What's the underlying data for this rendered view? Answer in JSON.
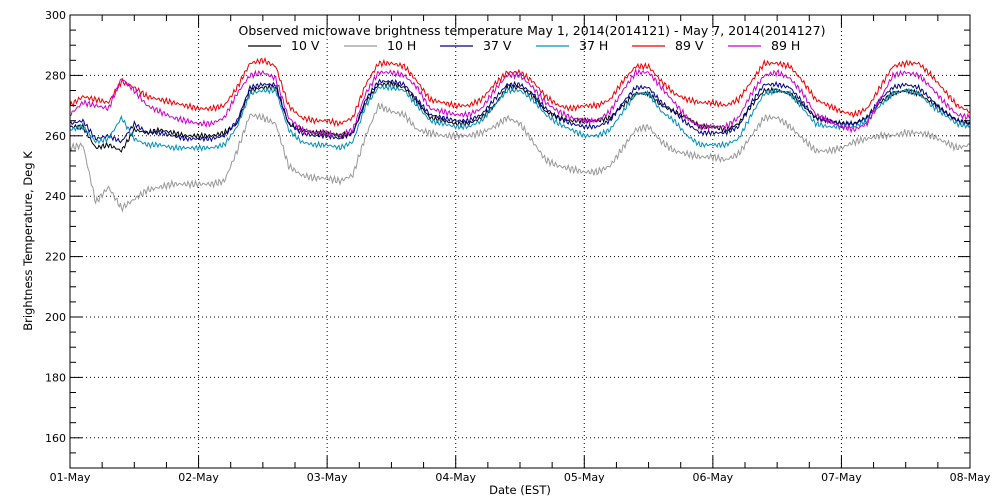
{
  "chart_data": {
    "type": "line",
    "title": "Observed microwave brightness temperature May  1, 2014(2014121) - May  7, 2014(2014127)",
    "xlabel": "Date (EST)",
    "ylabel": "Brightness Temperature, Deg K",
    "ylim": [
      150,
      300
    ],
    "xlim": [
      "2014-05-01",
      "2014-05-08"
    ],
    "y_ticks": [
      "160",
      "180",
      "200",
      "220",
      "240",
      "260",
      "280",
      "300"
    ],
    "x_ticks": [
      "01-May",
      "02-May",
      "03-May",
      "04-May",
      "05-May",
      "06-May",
      "07-May",
      "08-May"
    ],
    "grid": true,
    "legend_position": "top",
    "series": [
      {
        "name": "10 V",
        "color": "#000000",
        "x": [
          0,
          0.1,
          0.2,
          0.3,
          0.4,
          0.5,
          0.6,
          0.7,
          0.8,
          0.9,
          1,
          1.1,
          1.2,
          1.3,
          1.4,
          1.5,
          1.6,
          1.7,
          1.8,
          1.9,
          2,
          2.1,
          2.2,
          2.3,
          2.4,
          2.5,
          2.6,
          2.7,
          2.8,
          2.9,
          3,
          3.1,
          3.2,
          3.3,
          3.4,
          3.5,
          3.6,
          3.7,
          3.8,
          3.9,
          4,
          4.1,
          4.2,
          4.3,
          4.4,
          4.5,
          4.6,
          4.7,
          4.8,
          4.9,
          5,
          5.1,
          5.2,
          5.3,
          5.4,
          5.5,
          5.6,
          5.7,
          5.8,
          5.9,
          6,
          6.1,
          6.2,
          6.3,
          6.4,
          6.5,
          6.6,
          6.7,
          6.8,
          6.9,
          7
        ],
        "y": [
          263,
          263,
          256,
          257,
          255,
          262,
          261,
          262,
          261,
          260,
          260,
          260,
          261,
          264,
          275,
          276,
          276,
          264,
          262,
          261,
          261,
          260,
          261,
          271,
          277,
          277,
          276,
          271,
          266,
          265,
          264,
          264,
          266,
          270,
          276,
          276,
          273,
          268,
          266,
          265,
          265,
          265,
          266,
          270,
          274,
          274,
          270,
          268,
          266,
          263,
          263,
          262,
          264,
          270,
          275,
          275,
          274,
          270,
          266,
          265,
          264,
          264,
          266,
          271,
          274,
          275,
          274,
          271,
          268,
          265,
          264
        ]
      },
      {
        "name": "10 H",
        "color": "#999999",
        "x": [
          0,
          0.1,
          0.2,
          0.3,
          0.4,
          0.5,
          0.6,
          0.7,
          0.8,
          0.9,
          1,
          1.1,
          1.2,
          1.3,
          1.4,
          1.5,
          1.6,
          1.7,
          1.8,
          1.9,
          2,
          2.1,
          2.2,
          2.3,
          2.4,
          2.5,
          2.6,
          2.7,
          2.8,
          2.9,
          3,
          3.1,
          3.2,
          3.3,
          3.4,
          3.5,
          3.6,
          3.7,
          3.8,
          3.9,
          4,
          4.1,
          4.2,
          4.3,
          4.4,
          4.5,
          4.6,
          4.7,
          4.8,
          4.9,
          5,
          5.1,
          5.2,
          5.3,
          5.4,
          5.5,
          5.6,
          5.7,
          5.8,
          5.9,
          6,
          6.1,
          6.2,
          6.3,
          6.4,
          6.5,
          6.6,
          6.7,
          6.8,
          6.9,
          7
        ],
        "y": [
          256,
          257,
          238,
          243,
          236,
          239,
          242,
          243,
          244,
          244,
          244,
          244,
          245,
          255,
          267,
          266,
          264,
          250,
          247,
          246,
          246,
          245,
          247,
          260,
          270,
          268,
          267,
          262,
          261,
          260,
          260,
          260,
          261,
          263,
          266,
          264,
          258,
          252,
          250,
          249,
          248,
          248,
          250,
          256,
          262,
          263,
          258,
          255,
          254,
          253,
          253,
          252,
          254,
          260,
          266,
          266,
          263,
          259,
          255,
          255,
          256,
          258,
          259,
          260,
          260,
          261,
          261,
          260,
          258,
          256,
          257
        ]
      },
      {
        "name": "37 V",
        "color": "#00008c",
        "x": [
          0,
          0.1,
          0.2,
          0.3,
          0.4,
          0.5,
          0.6,
          0.7,
          0.8,
          0.9,
          1,
          1.1,
          1.2,
          1.3,
          1.4,
          1.5,
          1.6,
          1.7,
          1.8,
          1.9,
          2,
          2.1,
          2.2,
          2.3,
          2.4,
          2.5,
          2.6,
          2.7,
          2.8,
          2.9,
          3,
          3.1,
          3.2,
          3.3,
          3.4,
          3.5,
          3.6,
          3.7,
          3.8,
          3.9,
          4,
          4.1,
          4.2,
          4.3,
          4.4,
          4.5,
          4.6,
          4.7,
          4.8,
          4.9,
          5,
          5.1,
          5.2,
          5.3,
          5.4,
          5.5,
          5.6,
          5.7,
          5.8,
          5.9,
          6,
          6.1,
          6.2,
          6.3,
          6.4,
          6.5,
          6.6,
          6.7,
          6.8,
          6.9,
          7
        ],
        "y": [
          264,
          265,
          259,
          260,
          258,
          264,
          261,
          261,
          260,
          259,
          259,
          259,
          260,
          265,
          276,
          277,
          277,
          264,
          261,
          260,
          260,
          259,
          261,
          272,
          278,
          278,
          277,
          272,
          267,
          266,
          265,
          265,
          267,
          272,
          277,
          277,
          274,
          269,
          266,
          264,
          263,
          263,
          265,
          271,
          276,
          276,
          271,
          268,
          264,
          261,
          261,
          261,
          263,
          271,
          277,
          277,
          276,
          271,
          266,
          265,
          264,
          264,
          266,
          272,
          276,
          277,
          276,
          272,
          268,
          265,
          264
        ]
      },
      {
        "name": "37 H",
        "color": "#0090c0",
        "x": [
          0,
          0.1,
          0.2,
          0.3,
          0.4,
          0.5,
          0.6,
          0.7,
          0.8,
          0.9,
          1,
          1.1,
          1.2,
          1.3,
          1.4,
          1.5,
          1.6,
          1.7,
          1.8,
          1.9,
          2,
          2.1,
          2.2,
          2.3,
          2.4,
          2.5,
          2.6,
          2.7,
          2.8,
          2.9,
          3,
          3.1,
          3.2,
          3.3,
          3.4,
          3.5,
          3.6,
          3.7,
          3.8,
          3.9,
          4,
          4.1,
          4.2,
          4.3,
          4.4,
          4.5,
          4.6,
          4.7,
          4.8,
          4.9,
          5,
          5.1,
          5.2,
          5.3,
          5.4,
          5.5,
          5.6,
          5.7,
          5.8,
          5.9,
          6,
          6.1,
          6.2,
          6.3,
          6.4,
          6.5,
          6.6,
          6.7,
          6.8,
          6.9,
          7
        ],
        "y": [
          262,
          263,
          258,
          259,
          266,
          259,
          257,
          257,
          256,
          256,
          256,
          256,
          257,
          263,
          274,
          275,
          275,
          262,
          258,
          257,
          257,
          256,
          258,
          270,
          276,
          276,
          275,
          270,
          265,
          264,
          263,
          263,
          265,
          270,
          275,
          275,
          272,
          267,
          264,
          262,
          260,
          260,
          262,
          268,
          274,
          274,
          268,
          265,
          260,
          257,
          257,
          257,
          259,
          267,
          274,
          275,
          274,
          269,
          264,
          263,
          263,
          263,
          265,
          270,
          274,
          275,
          274,
          270,
          267,
          264,
          263
        ]
      },
      {
        "name": "89 V",
        "color": "#ee0000",
        "x": [
          0,
          0.1,
          0.2,
          0.3,
          0.4,
          0.5,
          0.6,
          0.7,
          0.8,
          0.9,
          1,
          1.1,
          1.2,
          1.3,
          1.4,
          1.5,
          1.6,
          1.7,
          1.8,
          1.9,
          2,
          2.1,
          2.2,
          2.3,
          2.4,
          2.5,
          2.6,
          2.7,
          2.8,
          2.9,
          3,
          3.1,
          3.2,
          3.3,
          3.4,
          3.5,
          3.6,
          3.7,
          3.8,
          3.9,
          4,
          4.1,
          4.2,
          4.3,
          4.4,
          4.5,
          4.6,
          4.7,
          4.8,
          4.9,
          5,
          5.1,
          5.2,
          5.3,
          5.4,
          5.5,
          5.6,
          5.7,
          5.8,
          5.9,
          6,
          6.1,
          6.2,
          6.3,
          6.4,
          6.5,
          6.6,
          6.7,
          6.8,
          6.9,
          7
        ],
        "y": [
          270,
          273,
          272,
          271,
          278,
          276,
          273,
          272,
          271,
          270,
          269,
          269,
          270,
          276,
          284,
          285,
          283,
          270,
          266,
          265,
          265,
          264,
          266,
          277,
          284,
          284,
          283,
          278,
          272,
          271,
          270,
          270,
          272,
          277,
          281,
          281,
          278,
          273,
          270,
          269,
          270,
          270,
          272,
          278,
          283,
          283,
          278,
          274,
          272,
          271,
          271,
          270,
          272,
          278,
          284,
          284,
          283,
          278,
          272,
          270,
          268,
          267,
          269,
          276,
          283,
          284,
          284,
          280,
          275,
          270,
          268
        ]
      },
      {
        "name": "89 H",
        "color": "#cc00cc",
        "x": [
          0,
          0.1,
          0.2,
          0.3,
          0.4,
          0.5,
          0.6,
          0.7,
          0.8,
          0.9,
          1,
          1.1,
          1.2,
          1.3,
          1.4,
          1.5,
          1.6,
          1.7,
          1.8,
          1.9,
          2,
          2.1,
          2.2,
          2.3,
          2.4,
          2.5,
          2.6,
          2.7,
          2.8,
          2.9,
          3,
          3.1,
          3.2,
          3.3,
          3.4,
          3.5,
          3.6,
          3.7,
          3.8,
          3.9,
          4,
          4.1,
          4.2,
          4.3,
          4.4,
          4.5,
          4.6,
          4.7,
          4.8,
          4.9,
          5,
          5.1,
          5.2,
          5.3,
          5.4,
          5.5,
          5.6,
          5.7,
          5.8,
          5.9,
          6,
          6.1,
          6.2,
          6.3,
          6.4,
          6.5,
          6.6,
          6.7,
          6.8,
          6.9,
          7
        ],
        "y": [
          267,
          271,
          270,
          269,
          279,
          275,
          270,
          268,
          266,
          265,
          264,
          264,
          266,
          274,
          280,
          281,
          279,
          266,
          262,
          261,
          261,
          260,
          262,
          274,
          281,
          281,
          280,
          276,
          269,
          268,
          267,
          267,
          269,
          275,
          280,
          280,
          276,
          271,
          268,
          266,
          265,
          265,
          268,
          275,
          281,
          281,
          276,
          271,
          266,
          263,
          263,
          263,
          266,
          274,
          280,
          281,
          279,
          274,
          267,
          265,
          263,
          262,
          264,
          272,
          280,
          281,
          280,
          276,
          271,
          267,
          266
        ]
      }
    ]
  }
}
